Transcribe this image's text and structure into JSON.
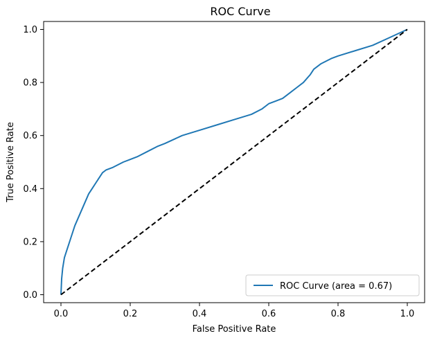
{
  "chart_data": {
    "type": "line",
    "title": "ROC Curve",
    "xlabel": "False Positive Rate",
    "ylabel": "True Positive Rate",
    "xlim": [
      -0.05,
      1.05
    ],
    "ylim": [
      -0.03,
      1.03
    ],
    "xticks": [
      0.0,
      0.2,
      0.4,
      0.6,
      0.8,
      1.0
    ],
    "yticks": [
      0.0,
      0.2,
      0.4,
      0.6,
      0.8,
      1.0
    ],
    "xtick_labels": [
      "0.0",
      "0.2",
      "0.4",
      "0.6",
      "0.8",
      "1.0"
    ],
    "ytick_labels": [
      "0.0",
      "0.2",
      "0.4",
      "0.6",
      "0.8",
      "1.0"
    ],
    "grid": false,
    "legend_position": "lower-right",
    "series": [
      {
        "name": "ROC Curve (area = 0.67)",
        "color": "#1f77b4",
        "style": "solid",
        "x": [
          0.0,
          0.002,
          0.005,
          0.01,
          0.015,
          0.02,
          0.03,
          0.04,
          0.05,
          0.06,
          0.07,
          0.08,
          0.09,
          0.1,
          0.11,
          0.12,
          0.13,
          0.15,
          0.18,
          0.2,
          0.22,
          0.25,
          0.28,
          0.3,
          0.35,
          0.4,
          0.45,
          0.5,
          0.55,
          0.58,
          0.6,
          0.62,
          0.64,
          0.66,
          0.68,
          0.7,
          0.72,
          0.73,
          0.75,
          0.78,
          0.8,
          0.85,
          0.9,
          0.95,
          1.0
        ],
        "y": [
          0.0,
          0.06,
          0.1,
          0.14,
          0.16,
          0.18,
          0.22,
          0.26,
          0.29,
          0.32,
          0.35,
          0.38,
          0.4,
          0.42,
          0.44,
          0.46,
          0.47,
          0.48,
          0.5,
          0.51,
          0.52,
          0.54,
          0.56,
          0.57,
          0.6,
          0.62,
          0.64,
          0.66,
          0.68,
          0.7,
          0.72,
          0.73,
          0.74,
          0.76,
          0.78,
          0.8,
          0.83,
          0.85,
          0.87,
          0.89,
          0.9,
          0.92,
          0.94,
          0.97,
          1.0
        ]
      },
      {
        "name": "",
        "color": "#000000",
        "style": "dashed",
        "x": [
          0.0,
          1.0
        ],
        "y": [
          0.0,
          1.0
        ]
      }
    ]
  }
}
